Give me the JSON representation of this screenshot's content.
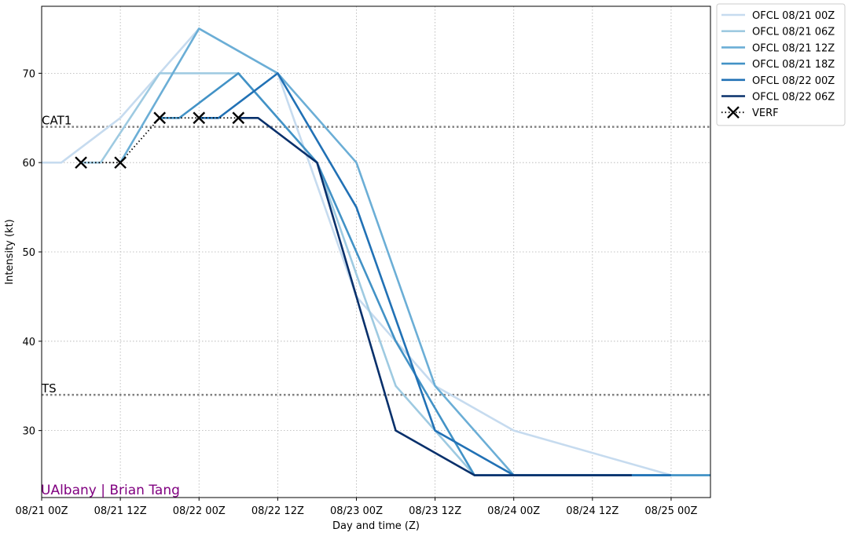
{
  "chart_data": {
    "type": "line",
    "xlabel": "Day and time (Z)",
    "ylabel": "Intensity (kt)",
    "xlim": [
      0,
      102
    ],
    "ylim": [
      22.5,
      77.5
    ],
    "x_units": "hours since 08/21 00Z",
    "x_ticks": [
      {
        "x": 0,
        "label": "08/21 00Z"
      },
      {
        "x": 12,
        "label": "08/21 12Z"
      },
      {
        "x": 24,
        "label": "08/22 00Z"
      },
      {
        "x": 36,
        "label": "08/22 12Z"
      },
      {
        "x": 48,
        "label": "08/23 00Z"
      },
      {
        "x": 60,
        "label": "08/23 12Z"
      },
      {
        "x": 72,
        "label": "08/24 00Z"
      },
      {
        "x": 84,
        "label": "08/24 12Z"
      },
      {
        "x": 96,
        "label": "08/25 00Z"
      }
    ],
    "y_ticks": [
      30,
      40,
      50,
      60,
      70
    ],
    "grid": true,
    "legend_position": "outside-top-right",
    "thresholds": [
      {
        "label": "CAT1",
        "value": 64
      },
      {
        "label": "TS",
        "value": 34
      }
    ],
    "series": [
      {
        "name": "OFCL 08/21 00Z",
        "color": "#c6dbef",
        "x": [
          0,
          3,
          12,
          24,
          36,
          48,
          60,
          72,
          96,
          102
        ],
        "y": [
          60,
          60,
          65,
          75,
          70,
          45,
          35,
          30,
          25,
          25
        ]
      },
      {
        "name": "OFCL 08/21 06Z",
        "color": "#9ecae1",
        "x": [
          6,
          9,
          18,
          30,
          42,
          54,
          66,
          78,
          102
        ],
        "y": [
          60,
          60,
          70,
          70,
          60,
          35,
          25,
          25,
          25
        ]
      },
      {
        "name": "OFCL 08/21 12Z",
        "color": "#6baed6",
        "x": [
          12,
          24,
          36,
          48,
          60,
          72,
          96
        ],
        "y": [
          60,
          75,
          70,
          60,
          35,
          25,
          25
        ]
      },
      {
        "name": "OFCL 08/21 18Z",
        "color": "#4292c6",
        "x": [
          18,
          21,
          30,
          42,
          54,
          66,
          78,
          102
        ],
        "y": [
          65,
          65,
          70,
          60,
          40,
          25,
          25,
          25
        ]
      },
      {
        "name": "OFCL 08/22 00Z",
        "color": "#2171b5",
        "x": [
          24,
          27,
          36,
          48,
          60,
          72,
          96
        ],
        "y": [
          65,
          65,
          70,
          55,
          30,
          25,
          25
        ]
      },
      {
        "name": "OFCL 08/22 06Z",
        "color": "#08306b",
        "x": [
          30,
          33,
          42,
          54,
          66,
          78,
          90
        ],
        "y": [
          65,
          65,
          60,
          30,
          25,
          25,
          25
        ]
      }
    ],
    "verification": {
      "name": "VERF",
      "color": "#000000",
      "x": [
        6,
        12,
        18,
        24,
        30
      ],
      "y": [
        60,
        60,
        65,
        65,
        65
      ]
    },
    "watermark": "UAlbany | Brian Tang",
    "watermark_color": "#800080"
  }
}
